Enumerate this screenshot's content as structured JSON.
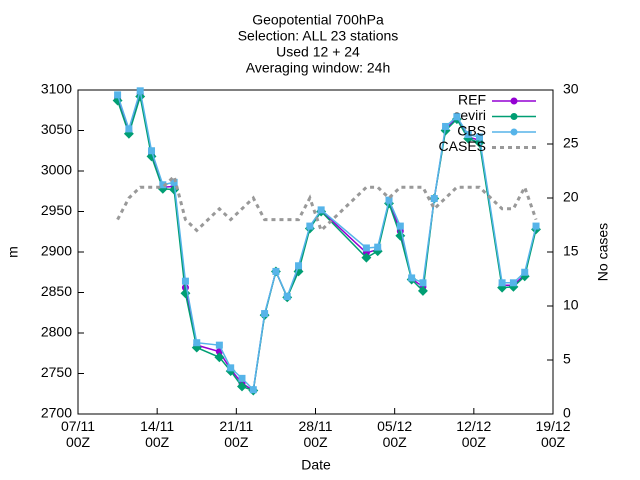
{
  "chart_data": {
    "type": "line",
    "title": [
      "Geopotential 700hPa",
      "Selection: ALL     23 stations",
      "Used 12 + 24",
      "Averaging window: 24h"
    ],
    "x_label": "Date",
    "y_label": "m",
    "y2_label": "No cases",
    "x": [
      "10/11 12Z",
      "11/11 12Z",
      "12/11 12Z",
      "13/11 12Z",
      "14/11 12Z",
      "15/11 12Z",
      "16/11 12Z",
      "17/11 12Z",
      "19/11 12Z",
      "20/11 12Z",
      "21/11 12Z",
      "22/11 12Z",
      "23/11 12Z",
      "24/11 12Z",
      "25/11 12Z",
      "26/11 12Z",
      "27/11 12Z",
      "28/11 12Z",
      "02/12 12Z",
      "03/12 12Z",
      "04/12 12Z",
      "05/12 12Z",
      "06/12 12Z",
      "07/12 12Z",
      "08/12 12Z",
      "09/12 12Z",
      "10/12 12Z",
      "11/12 12Z",
      "12/12 12Z",
      "14/12 12Z",
      "15/12 12Z",
      "16/12 12Z",
      "17/12 12Z"
    ],
    "xlim": [
      "07/11 00Z",
      "19/12 00Z"
    ],
    "xticks": [
      {
        "value": "07/11 00Z",
        "label": "07/11\n00Z"
      },
      {
        "value": "14/11 00Z",
        "label": "14/11\n00Z"
      },
      {
        "value": "21/11 00Z",
        "label": "21/11\n00Z"
      },
      {
        "value": "28/11 00Z",
        "label": "28/11\n00Z"
      },
      {
        "value": "05/12 00Z",
        "label": "05/12\n00Z"
      },
      {
        "value": "12/12 00Z",
        "label": "12/12\n00Z"
      },
      {
        "value": "19/12 00Z",
        "label": "19/12\n00Z"
      }
    ],
    "ylim": [
      2700,
      3100
    ],
    "yticks": [
      2700,
      2750,
      2800,
      2850,
      2900,
      2950,
      3000,
      3050,
      3100
    ],
    "y2lim": [
      0,
      30
    ],
    "y2ticks": [
      0,
      5,
      10,
      15,
      20,
      25,
      30
    ],
    "legend": "top-right",
    "series": [
      {
        "name": "REF",
        "color": "#9400d3",
        "values": [
          3090,
          3049,
          3095,
          3021,
          2980,
          2981,
          2856,
          2785,
          2777,
          2755,
          2738,
          2729,
          2823,
          2876,
          2844,
          2879,
          2930,
          2951,
          2899,
          2903,
          2962,
          2926,
          2867,
          2857,
          2966,
          3052,
          3065,
          3042,
          3038,
          2859,
          2859,
          2872,
          2930
        ]
      },
      {
        "name": "seviri",
        "color": "#009e73",
        "values": [
          3087,
          3046,
          3092,
          3018,
          2978,
          2977,
          2849,
          2782,
          2770,
          2753,
          2734,
          2729,
          2822,
          2876,
          2844,
          2876,
          2929,
          2950,
          2893,
          2901,
          2960,
          2920,
          2866,
          2852,
          2966,
          3050,
          3064,
          3040,
          3035,
          2856,
          2857,
          2870,
          2928
        ]
      },
      {
        "name": "CBS",
        "color": "#56b4e9",
        "values": [
          3094,
          3052,
          3099,
          3025,
          2983,
          2986,
          2864,
          2788,
          2785,
          2757,
          2744,
          2730,
          2824,
          2876,
          2845,
          2883,
          2932,
          2952,
          2905,
          2906,
          2964,
          2932,
          2868,
          2862,
          2966,
          3055,
          3067,
          3045,
          3042,
          2862,
          2862,
          2875,
          2932
        ]
      },
      {
        "name": "CASES",
        "color": "#999999",
        "axis": "y2",
        "dashed": true,
        "values": [
          18,
          20,
          21,
          21,
          21,
          22,
          18,
          17,
          19,
          18,
          19,
          20,
          18,
          18,
          18,
          18,
          20,
          17,
          21,
          21,
          20,
          21,
          21,
          21,
          19,
          20,
          21,
          21,
          21,
          19,
          19,
          21,
          18
        ]
      }
    ]
  }
}
